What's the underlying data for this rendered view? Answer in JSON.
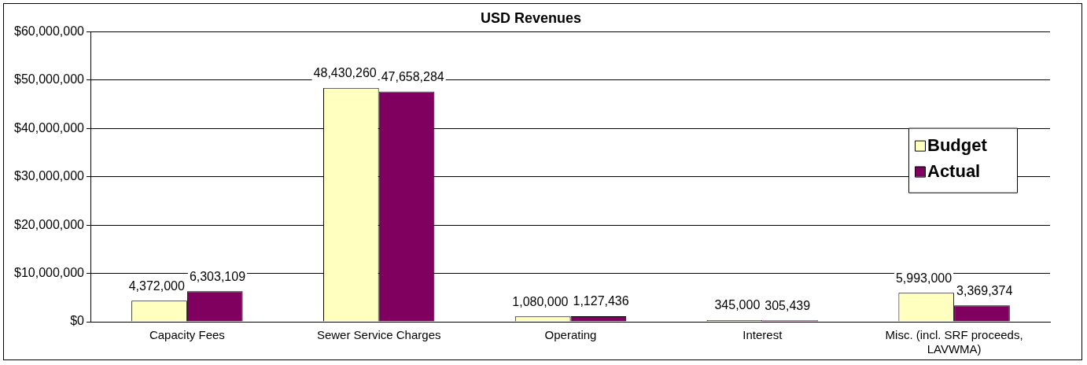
{
  "chart_data": {
    "type": "bar",
    "title": "USD Revenues",
    "categories": [
      "Capacity Fees",
      "Sewer Service Charges",
      "Operating",
      "Interest",
      "Misc. (incl. SRF proceeds, LAVWMA)"
    ],
    "series": [
      {
        "name": "Budget",
        "color": "#ffffc0",
        "values": [
          4372000,
          48430260,
          1080000,
          345000,
          5993000
        ],
        "value_labels": [
          "4,372,000",
          "48,430,260",
          "1,080,000",
          "345,000",
          "5,993,000"
        ]
      },
      {
        "name": "Actual",
        "color": "#800060",
        "values": [
          6303109,
          47658284,
          1127436,
          305439,
          3369374
        ],
        "value_labels": [
          "6,303,109",
          "47,658,284",
          "1,127,436",
          "305,439",
          "3,369,374"
        ]
      }
    ],
    "ylim": [
      0,
      60000000
    ],
    "yticks": [
      {
        "value": 0,
        "label": "$0"
      },
      {
        "value": 10000000,
        "label": "$10,000,000"
      },
      {
        "value": 20000000,
        "label": "$20,000,000"
      },
      {
        "value": 30000000,
        "label": "$30,000,000"
      },
      {
        "value": 40000000,
        "label": "$40,000,000"
      },
      {
        "value": 50000000,
        "label": "$50,000,000"
      },
      {
        "value": 60000000,
        "label": "$60,000,000"
      }
    ],
    "grid": "y",
    "legend": "top right"
  }
}
